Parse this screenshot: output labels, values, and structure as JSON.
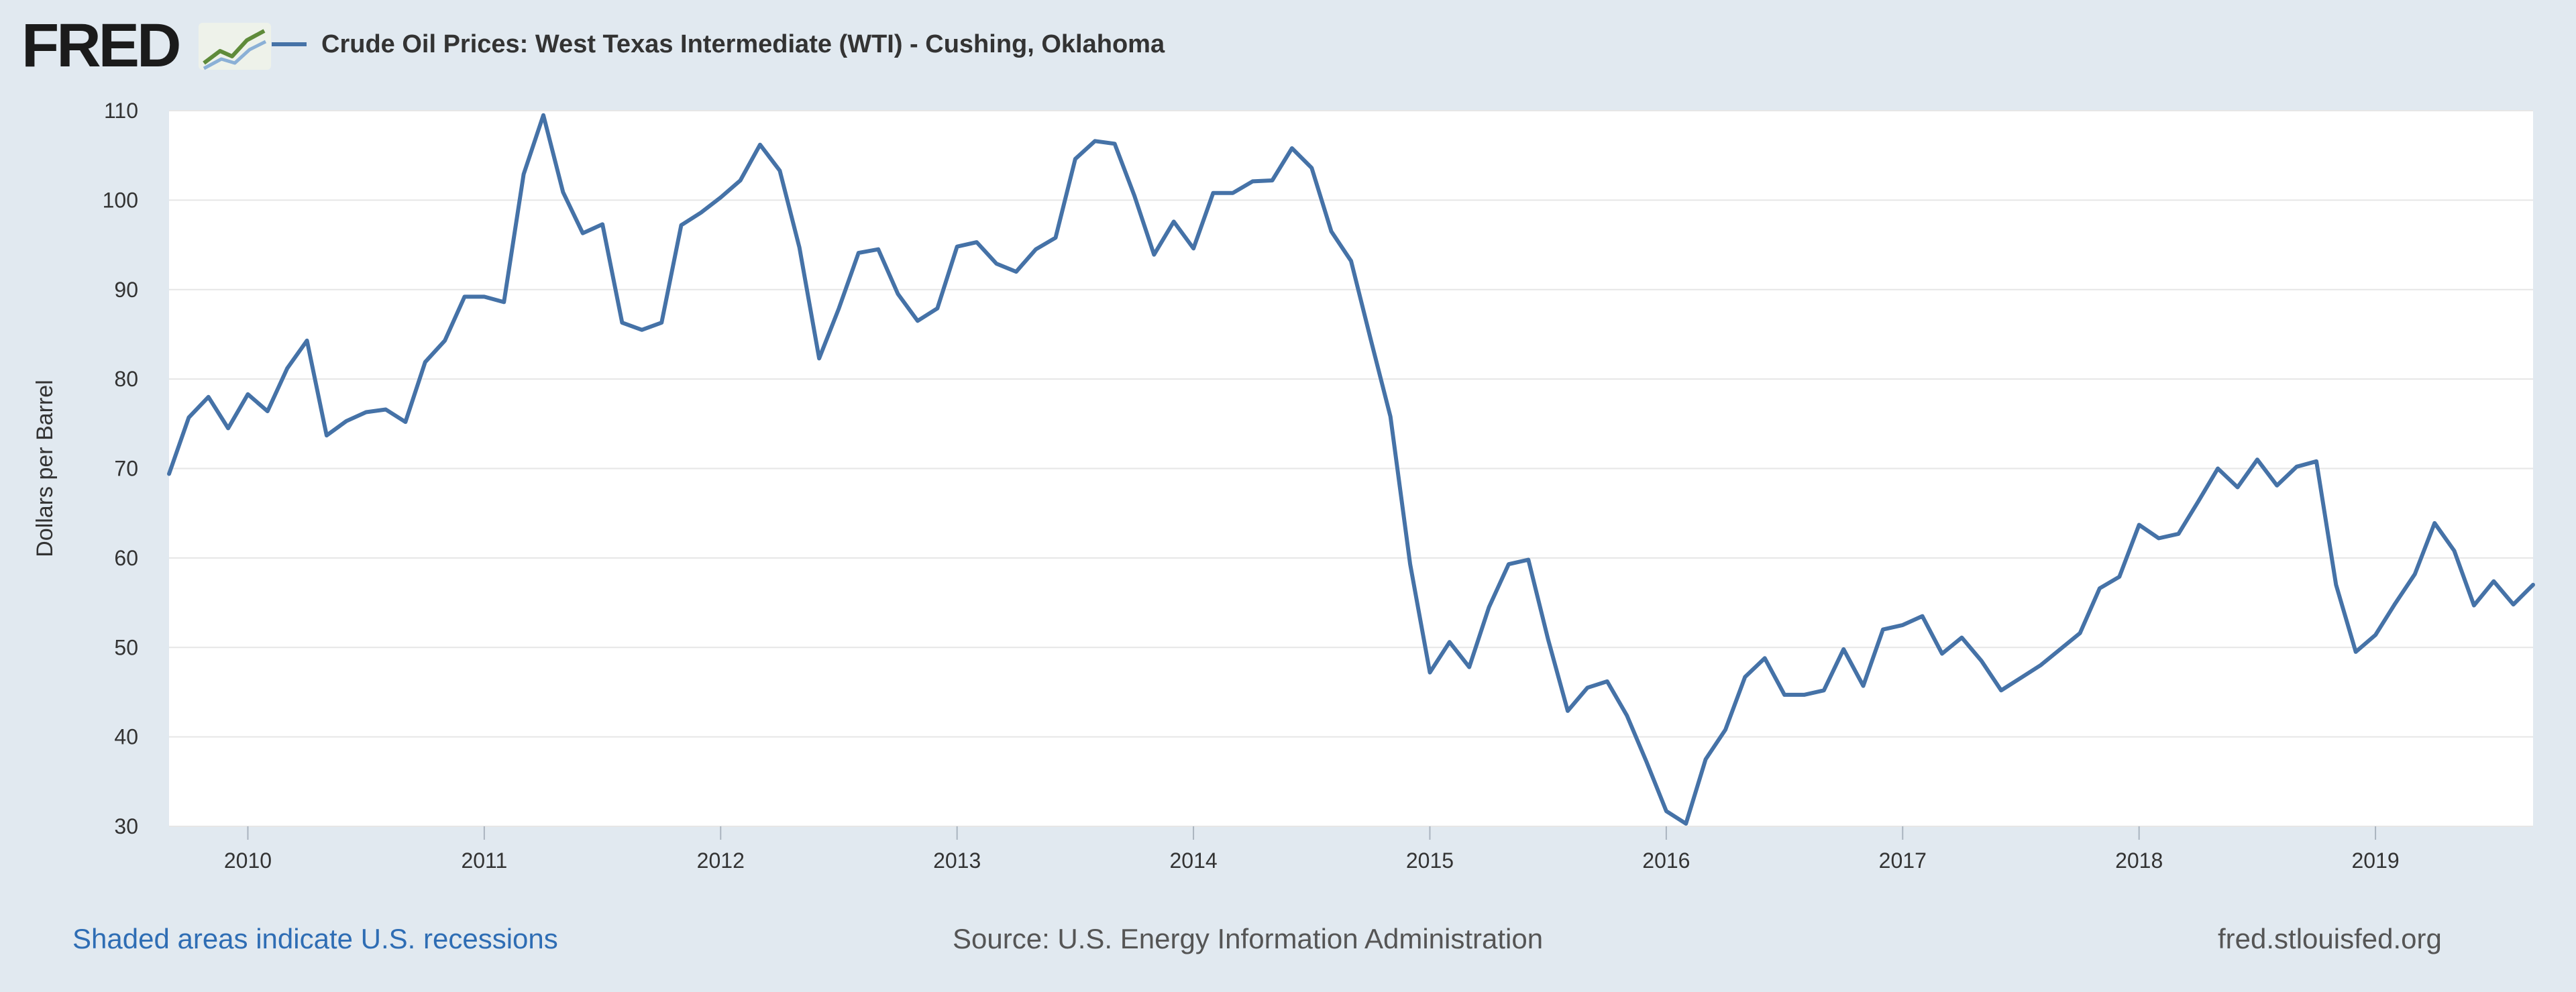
{
  "header": {
    "logo_text": "FRED",
    "legend_label": "Crude Oil Prices: West Texas Intermediate (WTI) - Cushing, Oklahoma"
  },
  "footer": {
    "recessions_note": "Shaded areas indicate U.S. recessions",
    "source": "Source: U.S. Energy Information Administration",
    "site": "fred.stlouisfed.org"
  },
  "colors": {
    "line": "#4572a7",
    "plot_background": "#ffffff",
    "page_background": "#e1e9f0",
    "gridline": "#e6e6e6"
  },
  "chart_data": {
    "type": "line",
    "title": "",
    "xlabel": "",
    "ylabel": "Dollars per Barrel",
    "ylim": [
      30,
      110
    ],
    "yticks": [
      30,
      40,
      50,
      60,
      70,
      80,
      90,
      100,
      110
    ],
    "xlim": [
      "2009-09",
      "2019-09"
    ],
    "xticks": [
      "2010",
      "2011",
      "2012",
      "2013",
      "2014",
      "2015",
      "2016",
      "2017",
      "2018",
      "2019"
    ],
    "grid": true,
    "legend": "top-left",
    "series": [
      {
        "name": "Crude Oil Prices: West Texas Intermediate (WTI) - Cushing, Oklahoma",
        "x": [
          "2009-09",
          "2009-10",
          "2009-11",
          "2009-12",
          "2010-01",
          "2010-02",
          "2010-03",
          "2010-04",
          "2010-05",
          "2010-06",
          "2010-07",
          "2010-08",
          "2010-09",
          "2010-10",
          "2010-11",
          "2010-12",
          "2011-01",
          "2011-02",
          "2011-03",
          "2011-04",
          "2011-05",
          "2011-06",
          "2011-07",
          "2011-08",
          "2011-09",
          "2011-10",
          "2011-11",
          "2011-12",
          "2012-01",
          "2012-02",
          "2012-03",
          "2012-04",
          "2012-05",
          "2012-06",
          "2012-07",
          "2012-08",
          "2012-09",
          "2012-10",
          "2012-11",
          "2012-12",
          "2013-01",
          "2013-02",
          "2013-03",
          "2013-04",
          "2013-05",
          "2013-06",
          "2013-07",
          "2013-08",
          "2013-09",
          "2013-10",
          "2013-11",
          "2013-12",
          "2014-01",
          "2014-02",
          "2014-03",
          "2014-04",
          "2014-05",
          "2014-06",
          "2014-07",
          "2014-08",
          "2014-09",
          "2014-10",
          "2014-11",
          "2014-12",
          "2015-01",
          "2015-02",
          "2015-03",
          "2015-04",
          "2015-05",
          "2015-06",
          "2015-07",
          "2015-08",
          "2015-09",
          "2015-10",
          "2015-11",
          "2015-12",
          "2016-01",
          "2016-02",
          "2016-03",
          "2016-04",
          "2016-05",
          "2016-06",
          "2016-07",
          "2016-08",
          "2016-09",
          "2016-10",
          "2016-11",
          "2016-12",
          "2017-01",
          "2017-02",
          "2017-03",
          "2017-04",
          "2017-05",
          "2017-06",
          "2017-07",
          "2017-08",
          "2017-09",
          "2017-10",
          "2017-11",
          "2017-12",
          "2018-01",
          "2018-02",
          "2018-03",
          "2018-04",
          "2018-05",
          "2018-06",
          "2018-07",
          "2018-08",
          "2018-09",
          "2018-10",
          "2018-11",
          "2018-12",
          "2019-01",
          "2019-02",
          "2019-03",
          "2019-04",
          "2019-05",
          "2019-06",
          "2019-07",
          "2019-08",
          "2019-09"
        ],
        "values": [
          69.4,
          75.7,
          78.0,
          74.5,
          78.3,
          76.4,
          81.2,
          84.3,
          73.7,
          75.3,
          76.3,
          76.6,
          75.2,
          81.9,
          84.3,
          89.2,
          89.2,
          88.6,
          102.9,
          109.5,
          100.9,
          96.3,
          97.3,
          86.3,
          85.5,
          86.3,
          97.2,
          98.6,
          100.3,
          102.2,
          106.2,
          103.3,
          94.7,
          82.3,
          87.9,
          94.1,
          94.5,
          89.5,
          86.5,
          87.9,
          94.8,
          95.3,
          92.9,
          92.0,
          94.5,
          95.8,
          104.6,
          106.6,
          106.3,
          100.5,
          93.9,
          97.6,
          94.6,
          100.8,
          100.8,
          102.1,
          102.2,
          105.8,
          103.6,
          96.5,
          93.2,
          84.4,
          75.8,
          59.3,
          47.2,
          50.6,
          47.8,
          54.5,
          59.3,
          59.8,
          50.9,
          42.9,
          45.5,
          46.2,
          42.4,
          37.2,
          31.7,
          30.3,
          37.5,
          40.8,
          46.7,
          48.8,
          44.7,
          44.7,
          45.2,
          49.8,
          45.7,
          52.0,
          52.5,
          53.5,
          49.3,
          51.1,
          48.5,
          45.2,
          46.6,
          48.0,
          49.8,
          51.6,
          56.6,
          57.9,
          63.7,
          62.2,
          62.7,
          66.3,
          70.0,
          67.9,
          71.0,
          68.1,
          70.2,
          70.8,
          57.0,
          49.5,
          51.4,
          54.9,
          58.2,
          63.9,
          60.8,
          54.7,
          57.4,
          54.8,
          57.0
        ]
      }
    ]
  }
}
